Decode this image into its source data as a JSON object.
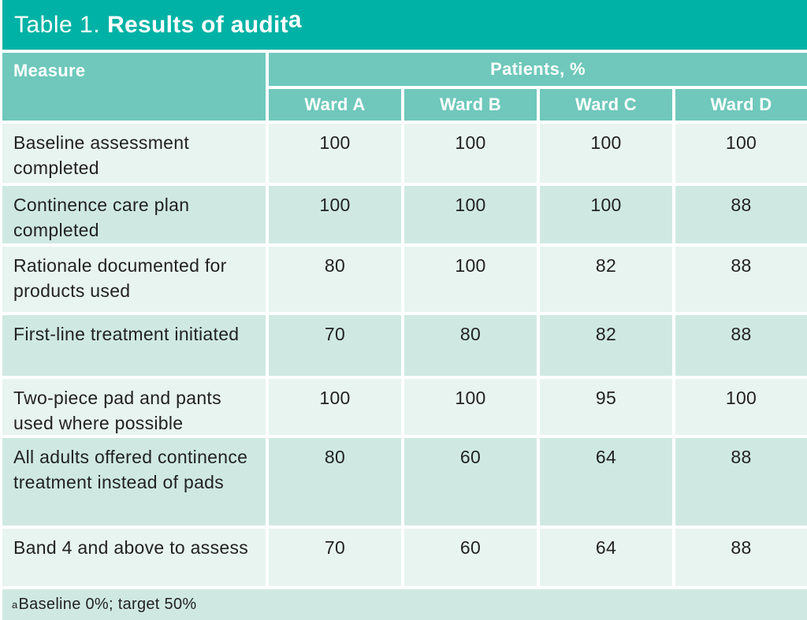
{
  "table": {
    "title_prefix": "Table 1.",
    "title_main": "Results of audit",
    "title_superscript": "a",
    "header": {
      "measure_label": "Measure",
      "patients_label": "Patients, %",
      "ward_labels": [
        "Ward A",
        "Ward B",
        "Ward C",
        "Ward D"
      ]
    },
    "rows": [
      {
        "measure": "Baseline assessment completed",
        "values": [
          "100",
          "100",
          "100",
          "100"
        ]
      },
      {
        "measure": "Continence care plan completed",
        "values": [
          "100",
          "100",
          "100",
          "88"
        ]
      },
      {
        "measure": "Rationale documented for products used",
        "values": [
          "80",
          "100",
          "82",
          "88"
        ]
      },
      {
        "measure": "First-line treatment initiated",
        "values": [
          "70",
          "80",
          "82",
          "88"
        ]
      },
      {
        "measure": "Two-piece pad and pants used where possible",
        "values": [
          "100",
          "100",
          "95",
          "100"
        ]
      },
      {
        "measure": "All adults offered continence treatment instead of pads",
        "values": [
          "80",
          "60",
          "64",
          "88"
        ]
      },
      {
        "measure": "Band 4 and above to assess",
        "values": [
          "70",
          "60",
          "64",
          "88"
        ]
      }
    ],
    "footnote_superscript": "a",
    "footnote_text": "Baseline 0%; target 50%",
    "colors": {
      "title_bar": "#00b2a5",
      "header_band": "#6fc8bb",
      "row_light": "#e8f4f0",
      "row_dark": "#cfe9e2",
      "header_text": "#ffffff",
      "body_text": "#222222"
    }
  },
  "chart_data": {
    "type": "table",
    "title": "Table 1. Results of audit",
    "unit": "Patients, %",
    "columns": [
      "Measure",
      "Ward A",
      "Ward B",
      "Ward C",
      "Ward D"
    ],
    "rows": [
      [
        "Baseline assessment completed",
        100,
        100,
        100,
        100
      ],
      [
        "Continence care plan completed",
        100,
        100,
        100,
        88
      ],
      [
        "Rationale documented for products used",
        80,
        100,
        82,
        88
      ],
      [
        "First-line treatment initiated",
        70,
        80,
        82,
        88
      ],
      [
        "Two-piece pad and pants used where possible",
        100,
        100,
        95,
        100
      ],
      [
        "All adults offered continence treatment instead of pads",
        80,
        60,
        64,
        88
      ],
      [
        "Band 4 and above to assess",
        70,
        60,
        64,
        88
      ]
    ],
    "footnote": "Baseline 0%; target 50%"
  }
}
